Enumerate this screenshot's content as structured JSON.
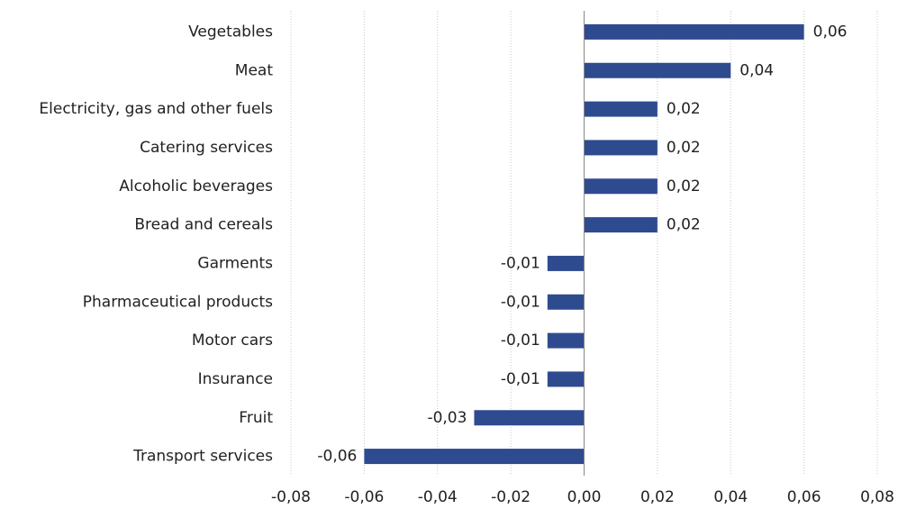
{
  "chart_data": {
    "type": "bar",
    "orientation": "horizontal",
    "categories": [
      "Vegetables",
      "Meat",
      "Electricity, gas and other fuels",
      "Catering services",
      "Alcoholic beverages",
      "Bread and cereals",
      "Garments",
      "Pharmaceutical products",
      "Motor cars",
      "Insurance",
      "Fruit",
      "Transport services"
    ],
    "values": [
      0.06,
      0.04,
      0.02,
      0.02,
      0.02,
      0.02,
      -0.01,
      -0.01,
      -0.01,
      -0.01,
      -0.03,
      -0.06
    ],
    "value_labels": [
      "0,06",
      "0,04",
      "0,02",
      "0,02",
      "0,02",
      "0,02",
      "-0,01",
      "-0,01",
      "-0,01",
      "-0,01",
      "-0,03",
      "-0,06"
    ],
    "color": "#2f4b8f",
    "xlim": [
      -0.08,
      0.08
    ],
    "xticks": [
      {
        "value": -0.08,
        "label": "-0,08"
      },
      {
        "value": -0.06,
        "label": "-0,06"
      },
      {
        "value": -0.04,
        "label": "-0,04"
      },
      {
        "value": -0.02,
        "label": "-0,02"
      },
      {
        "value": 0,
        "label": "0,00"
      },
      {
        "value": 0.02,
        "label": "0,02"
      },
      {
        "value": 0.04,
        "label": "0,04"
      },
      {
        "value": 0.06,
        "label": "0,06"
      },
      {
        "value": 0.08,
        "label": "0,08"
      }
    ],
    "grid": true
  }
}
